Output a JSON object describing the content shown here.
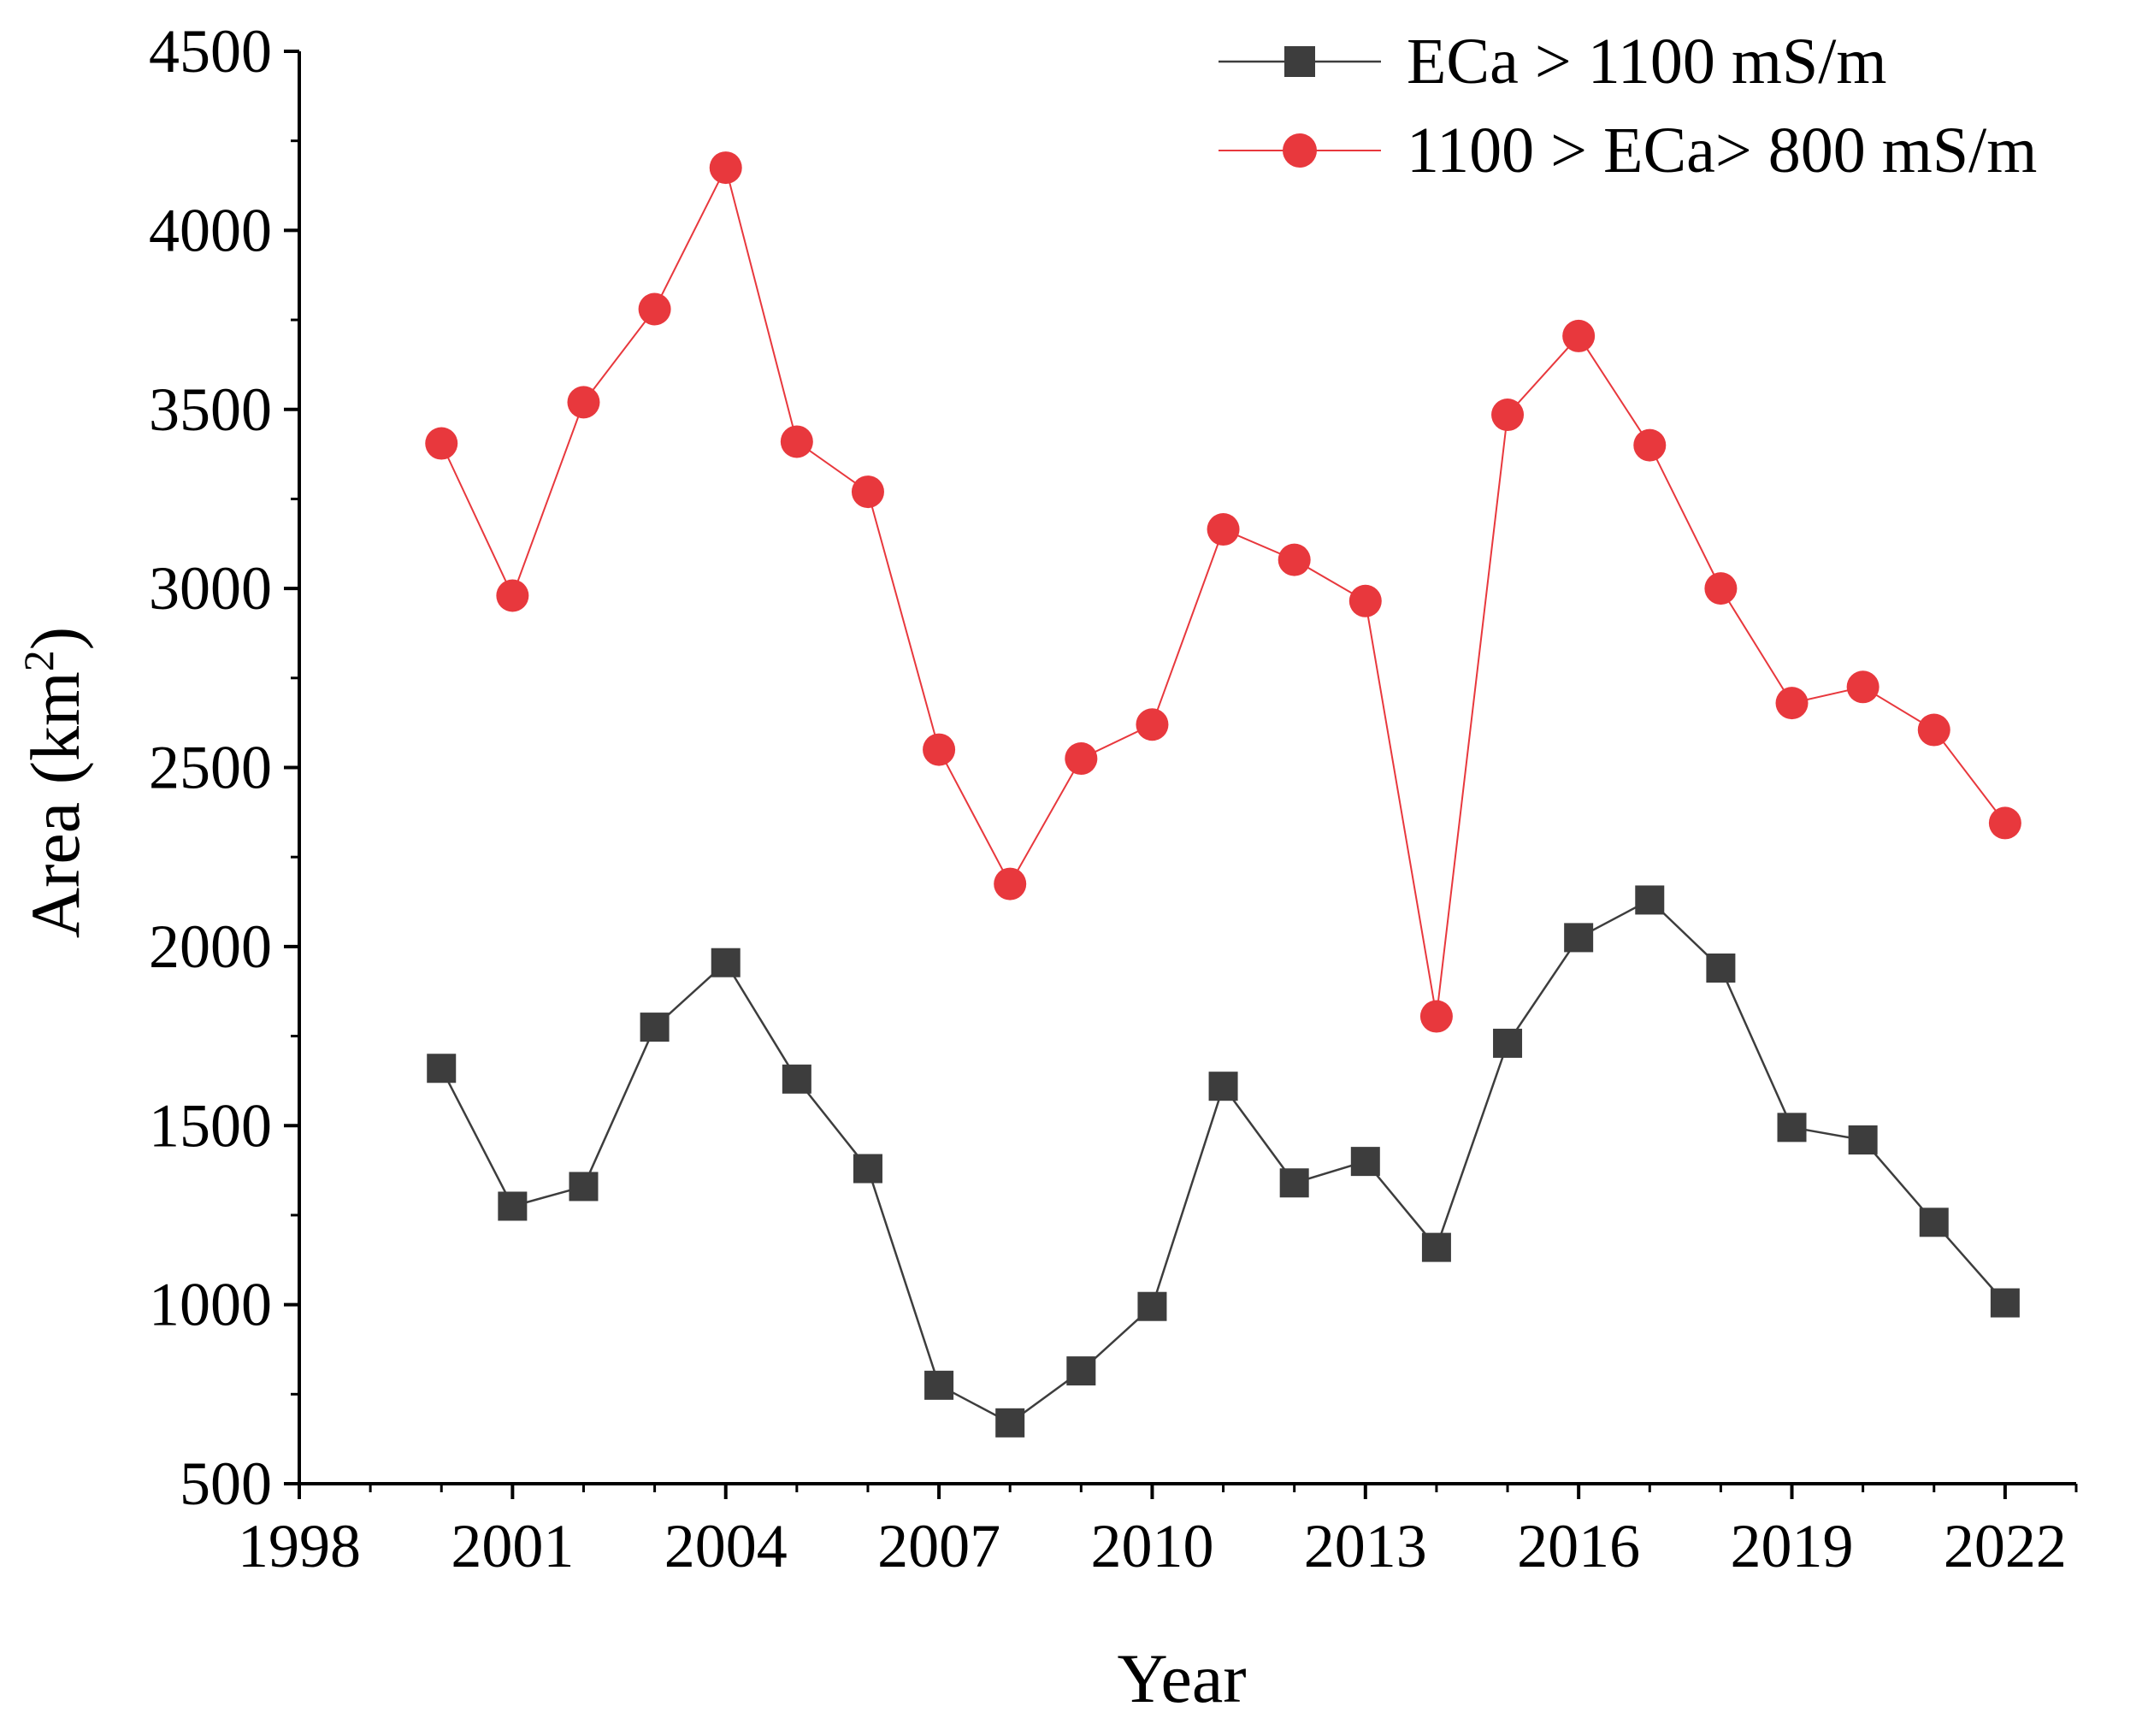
{
  "chart_data": {
    "type": "line",
    "title": "",
    "xlabel": "Year",
    "ylabel": "Area (km",
    "ylabel_superscript": "2",
    "ylabel_suffix": ")",
    "xlim": [
      1998,
      2023
    ],
    "ylim": [
      500,
      4500
    ],
    "x_ticks": [
      1998,
      2001,
      2004,
      2007,
      2010,
      2013,
      2016,
      2019,
      2022
    ],
    "y_ticks": [
      500,
      1000,
      1500,
      2000,
      2500,
      3000,
      3500,
      4000,
      4500
    ],
    "legend_position": "top-right",
    "x": [
      2000,
      2001,
      2002,
      2003,
      2004,
      2005,
      2006,
      2007,
      2008,
      2009,
      2010,
      2011,
      2012,
      2013,
      2014,
      2015,
      2016,
      2017,
      2018,
      2019,
      2020,
      2021,
      2022
    ],
    "series": [
      {
        "name": "ECa > 1100 mS/m",
        "marker": "square",
        "color": "#3d3d3d",
        "values": [
          1660,
          1275,
          1330,
          1775,
          1955,
          1630,
          1380,
          775,
          670,
          815,
          995,
          1610,
          1340,
          1400,
          1160,
          1730,
          2025,
          2130,
          1940,
          1495,
          1460,
          1230,
          1005
        ]
      },
      {
        "name": "1100 > ECa> 800 mS/m",
        "marker": "circle",
        "color": "#e8383d",
        "values": [
          3405,
          2980,
          3520,
          3780,
          4175,
          3410,
          3270,
          2550,
          2175,
          2525,
          2620,
          3165,
          3080,
          2965,
          1805,
          3485,
          3705,
          3400,
          3000,
          2680,
          2725,
          2605,
          2345
        ]
      }
    ]
  }
}
